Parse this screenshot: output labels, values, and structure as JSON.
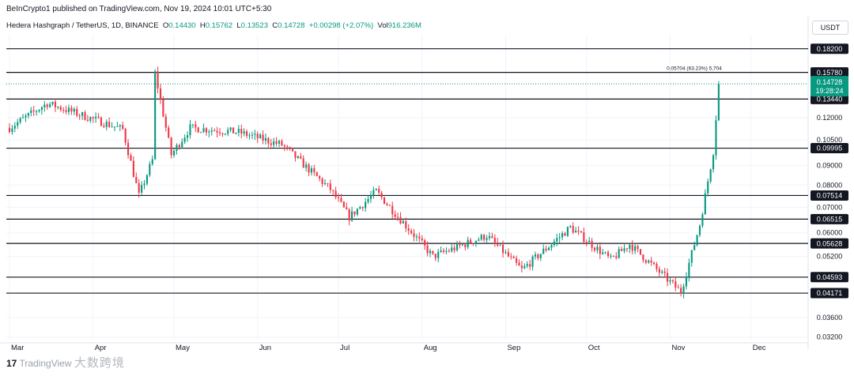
{
  "header": {
    "published": "BeInCrypto1 published on TradingView.com, Nov 19, 2024 10:01 UTC+5:30"
  },
  "legend": {
    "symbol": "Hedera Hashgraph / TetherUS, 1D, BINANCE",
    "o_label": "O",
    "o": "0.14430",
    "h_label": "H",
    "h": "0.15762",
    "l_label": "L",
    "l": "0.13523",
    "c_label": "C",
    "c": "0.14728",
    "change": "+0.00298 (+2.07%)",
    "vol_label": "Vol",
    "vol": "916.236M"
  },
  "currency": "USDT",
  "watermark": {
    "logo": "17",
    "text": "TradingView",
    "cn": "大数跨境"
  },
  "colors": {
    "up": "#089981",
    "down": "#f23645",
    "line": "#131722",
    "grid": "#f0f3fa"
  },
  "chart_data": {
    "type": "candlestick",
    "y_scale": "log",
    "ylim": [
      0.0315,
      0.198
    ],
    "y_ticks": [
      "0.03200",
      "0.03600",
      "0.05200",
      "0.06000",
      "0.07000",
      "0.08000",
      "0.09000",
      "0.10500",
      "0.12000"
    ],
    "x_labels": [
      "Mar",
      "Apr",
      "May",
      "Jun",
      "Jul",
      "Aug",
      "Sep",
      "Oct",
      "Nov",
      "Dec"
    ],
    "horizontal_levels": [
      "0.18200",
      "0.15780",
      "0.13440",
      "0.09995",
      "0.07514",
      "0.06515",
      "0.05628",
      "0.04593",
      "0.04171"
    ],
    "current_price": {
      "value": "0.14728",
      "countdown": "19:28:24"
    },
    "measure_annotation": "0.05704 (63.23%) 5,704",
    "candles_segments": [
      {
        "from": "Mar 1",
        "to": "Mar 15",
        "start": 0.113,
        "end": 0.131
      },
      {
        "from": "Mar 15",
        "to": "Apr 12",
        "start": 0.131,
        "end": 0.112
      },
      {
        "from": "Apr 12",
        "to": "Apr 18",
        "start": 0.112,
        "end": 0.075
      },
      {
        "from": "Apr 18",
        "to": "Apr 23",
        "start": 0.075,
        "end": 0.093
      },
      {
        "from": "Apr 23",
        "to": "Apr 24",
        "start": 0.093,
        "end": 0.157
      },
      {
        "from": "Apr 24",
        "to": "Apr 30",
        "start": 0.157,
        "end": 0.096
      },
      {
        "from": "Apr 30",
        "to": "May 7",
        "start": 0.096,
        "end": 0.113
      },
      {
        "from": "May 7",
        "to": "May 25",
        "start": 0.113,
        "end": 0.11
      },
      {
        "from": "May 25",
        "to": "Jun 10",
        "start": 0.11,
        "end": 0.102
      },
      {
        "from": "Jun 10",
        "to": "Jun 28",
        "start": 0.102,
        "end": 0.078
      },
      {
        "from": "Jun 28",
        "to": "Jul 5",
        "start": 0.078,
        "end": 0.066
      },
      {
        "from": "Jul 5",
        "to": "Jul 15",
        "start": 0.066,
        "end": 0.077
      },
      {
        "from": "Jul 15",
        "to": "Aug 5",
        "start": 0.077,
        "end": 0.052
      },
      {
        "from": "Aug 5",
        "to": "Aug 25",
        "start": 0.052,
        "end": 0.059
      },
      {
        "from": "Aug 25",
        "to": "Sep 7",
        "start": 0.059,
        "end": 0.048
      },
      {
        "from": "Sep 7",
        "to": "Sep 25",
        "start": 0.048,
        "end": 0.062
      },
      {
        "from": "Sep 25",
        "to": "Oct 10",
        "start": 0.062,
        "end": 0.051
      },
      {
        "from": "Oct 10",
        "to": "Oct 17",
        "start": 0.051,
        "end": 0.056
      },
      {
        "from": "Oct 17",
        "to": "Nov 5",
        "start": 0.056,
        "end": 0.042
      },
      {
        "from": "Nov 5",
        "to": "Nov 12",
        "start": 0.042,
        "end": 0.063
      },
      {
        "from": "Nov 12",
        "to": "Nov 14",
        "start": 0.063,
        "end": 0.075
      },
      {
        "from": "Nov 14",
        "to": "Nov 17",
        "start": 0.075,
        "end": 0.098
      },
      {
        "from": "Nov 17",
        "to": "Nov 19",
        "start": 0.098,
        "end": 0.14728
      }
    ]
  }
}
